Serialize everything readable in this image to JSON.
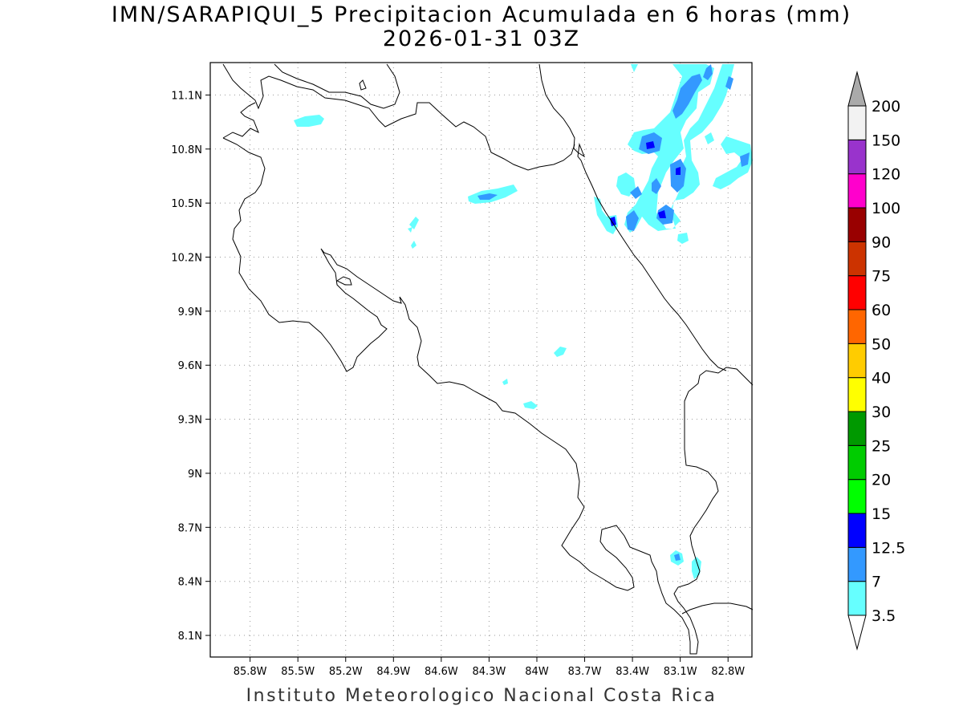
{
  "title_line1": "IMN/SARAPIQUI_5 Precipitacion Acumulada en 6 horas (mm)",
  "title_line2": "2026-01-31 03Z",
  "credit": "Instituto Meteorologico Nacional Costa Rica",
  "map": {
    "lon_range": [
      -86.05,
      -82.65
    ],
    "lat_range": [
      7.98,
      11.28
    ],
    "lon_ticks": [
      {
        "value": -85.8,
        "label": "85.8W"
      },
      {
        "value": -85.5,
        "label": "85.5W"
      },
      {
        "value": -85.2,
        "label": "85.2W"
      },
      {
        "value": -84.9,
        "label": "84.9W"
      },
      {
        "value": -84.6,
        "label": "84.6W"
      },
      {
        "value": -84.3,
        "label": "84.3W"
      },
      {
        "value": -84.0,
        "label": "84W"
      },
      {
        "value": -83.7,
        "label": "83.7W"
      },
      {
        "value": -83.4,
        "label": "83.4W"
      },
      {
        "value": -83.1,
        "label": "83.1W"
      },
      {
        "value": -82.8,
        "label": "82.8W"
      }
    ],
    "lat_ticks": [
      {
        "value": 11.1,
        "label": "11.1N"
      },
      {
        "value": 10.8,
        "label": "10.8N"
      },
      {
        "value": 10.5,
        "label": "10.5N"
      },
      {
        "value": 10.2,
        "label": "10.2N"
      },
      {
        "value": 9.9,
        "label": "9.9N"
      },
      {
        "value": 9.6,
        "label": "9.6N"
      },
      {
        "value": 9.3,
        "label": "9.3N"
      },
      {
        "value": 9.0,
        "label": "9N"
      },
      {
        "value": 8.7,
        "label": "8.7N"
      },
      {
        "value": 8.4,
        "label": "8.4N"
      },
      {
        "value": 8.1,
        "label": "8.1N"
      }
    ],
    "grid": "dotted"
  },
  "colorbar": {
    "levels": [
      "3.5",
      "7",
      "12.5",
      "15",
      "20",
      "25",
      "30",
      "40",
      "50",
      "60",
      "75",
      "90",
      "100",
      "120",
      "150",
      "200"
    ],
    "colors": [
      "#ffffff",
      "#66ffff",
      "#3399ff",
      "#0000ff",
      "#00ff00",
      "#00cc00",
      "#009900",
      "#ffff00",
      "#ffcc00",
      "#ff6600",
      "#ff0000",
      "#cc3300",
      "#990000",
      "#ff00cc",
      "#9933cc",
      "#f2f2f2",
      "#aaaaaa"
    ]
  }
}
